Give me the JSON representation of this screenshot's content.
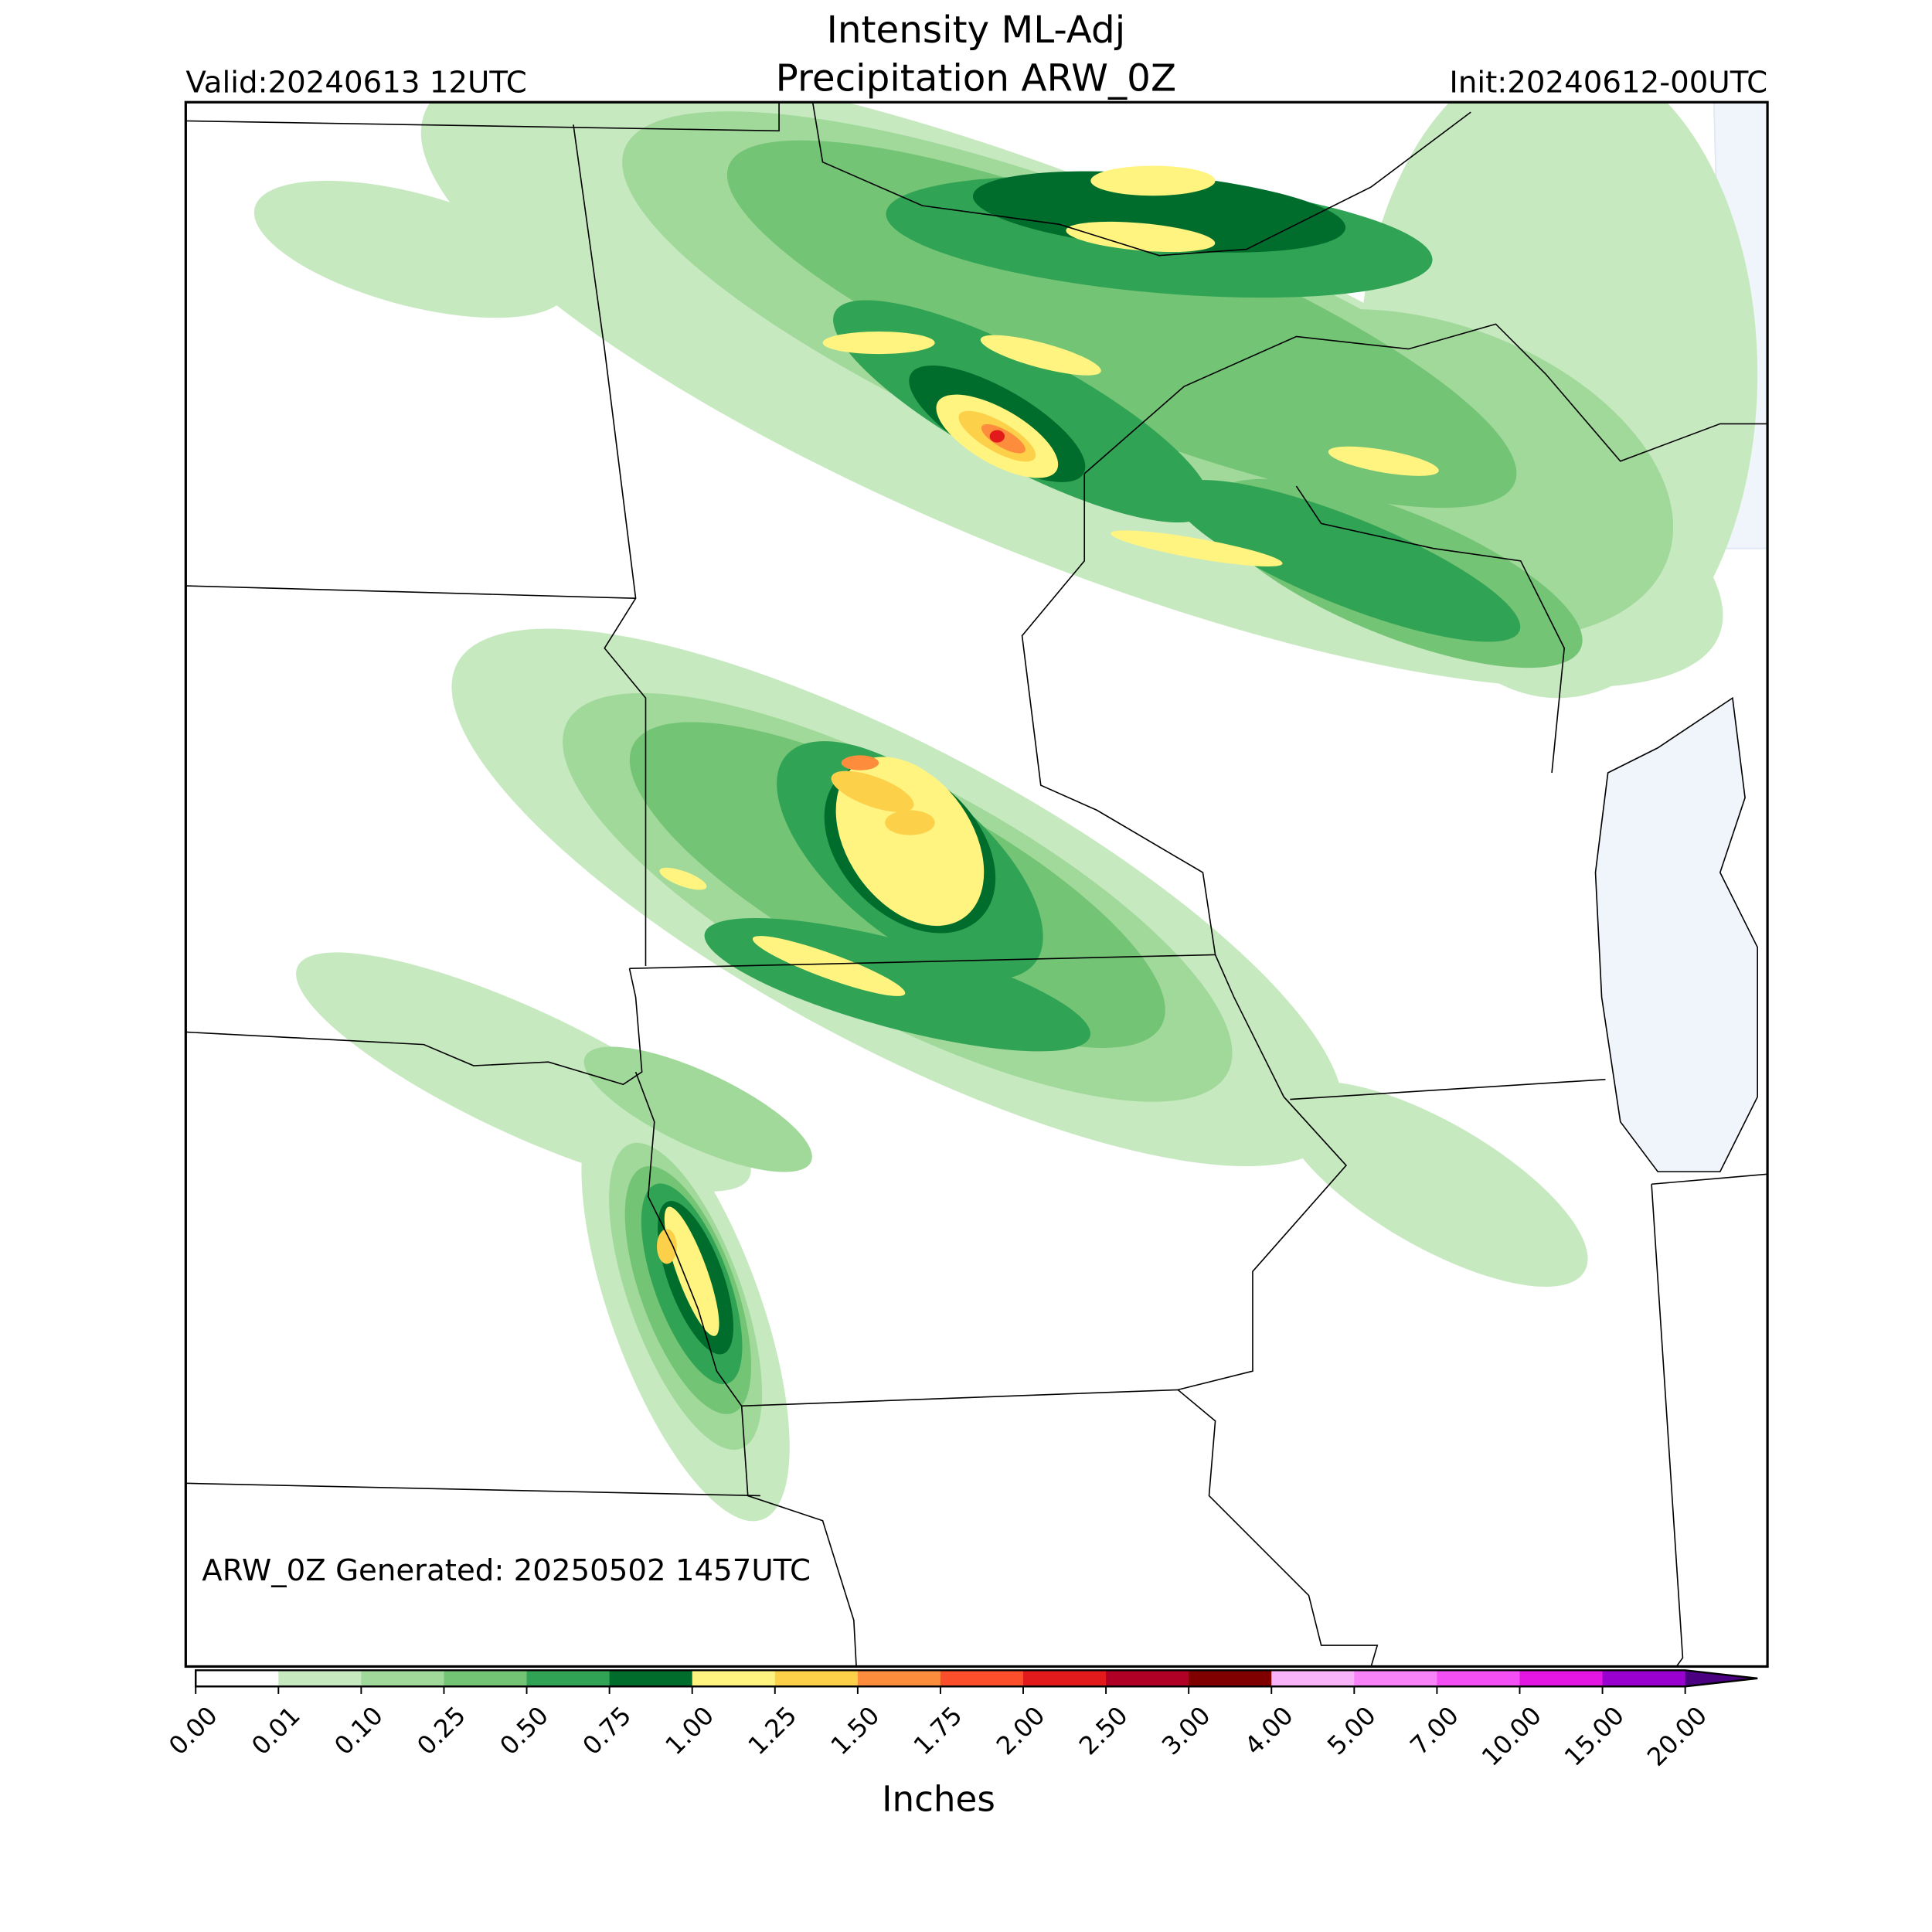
{
  "header": {
    "title": [
      "Intensity ML-Adj",
      "Precipitation ARW_0Z"
    ],
    "valid": "Valid:20240613 12UTC",
    "init": "Init:20240612-00UTC"
  },
  "note": "ARW_0Z Generated: 20250502 1457UTC",
  "colorbar": {
    "label": "Inches",
    "ticks": [
      {
        "value": 0,
        "label": "0.00"
      },
      {
        "value": 0.01,
        "label": "0.01"
      },
      {
        "value": 0.1,
        "label": "0.10"
      },
      {
        "value": 0.25,
        "label": "0.25"
      },
      {
        "value": 0.5,
        "label": "0.50"
      },
      {
        "value": 0.75,
        "label": "0.75"
      },
      {
        "value": 1,
        "label": "1.00"
      },
      {
        "value": 1.25,
        "label": "1.25"
      },
      {
        "value": 1.5,
        "label": "1.50"
      },
      {
        "value": 1.75,
        "label": "1.75"
      },
      {
        "value": 2,
        "label": "2.00"
      },
      {
        "value": 2.5,
        "label": "2.50"
      },
      {
        "value": 3,
        "label": "3.00"
      },
      {
        "value": 4,
        "label": "4.00"
      },
      {
        "value": 5,
        "label": "5.00"
      },
      {
        "value": 7,
        "label": "7.00"
      },
      {
        "value": 10,
        "label": "10.00"
      },
      {
        "value": 15,
        "label": "15.00"
      },
      {
        "value": 20,
        "label": "20.00"
      }
    ],
    "colors": [
      "#ffffff",
      "#c7e9c0",
      "#a1d99b",
      "#74c476",
      "#31a354",
      "#006d2c",
      "#fff480",
      "#fdd049",
      "#fd8d3c",
      "#fc4e2a",
      "#e31a1c",
      "#b10026",
      "#800000",
      "#f9b3f9",
      "#f882f8",
      "#f44ff4",
      "#e316e3",
      "#9a00cf"
    ],
    "extend_color": "#4b0082"
  }
}
